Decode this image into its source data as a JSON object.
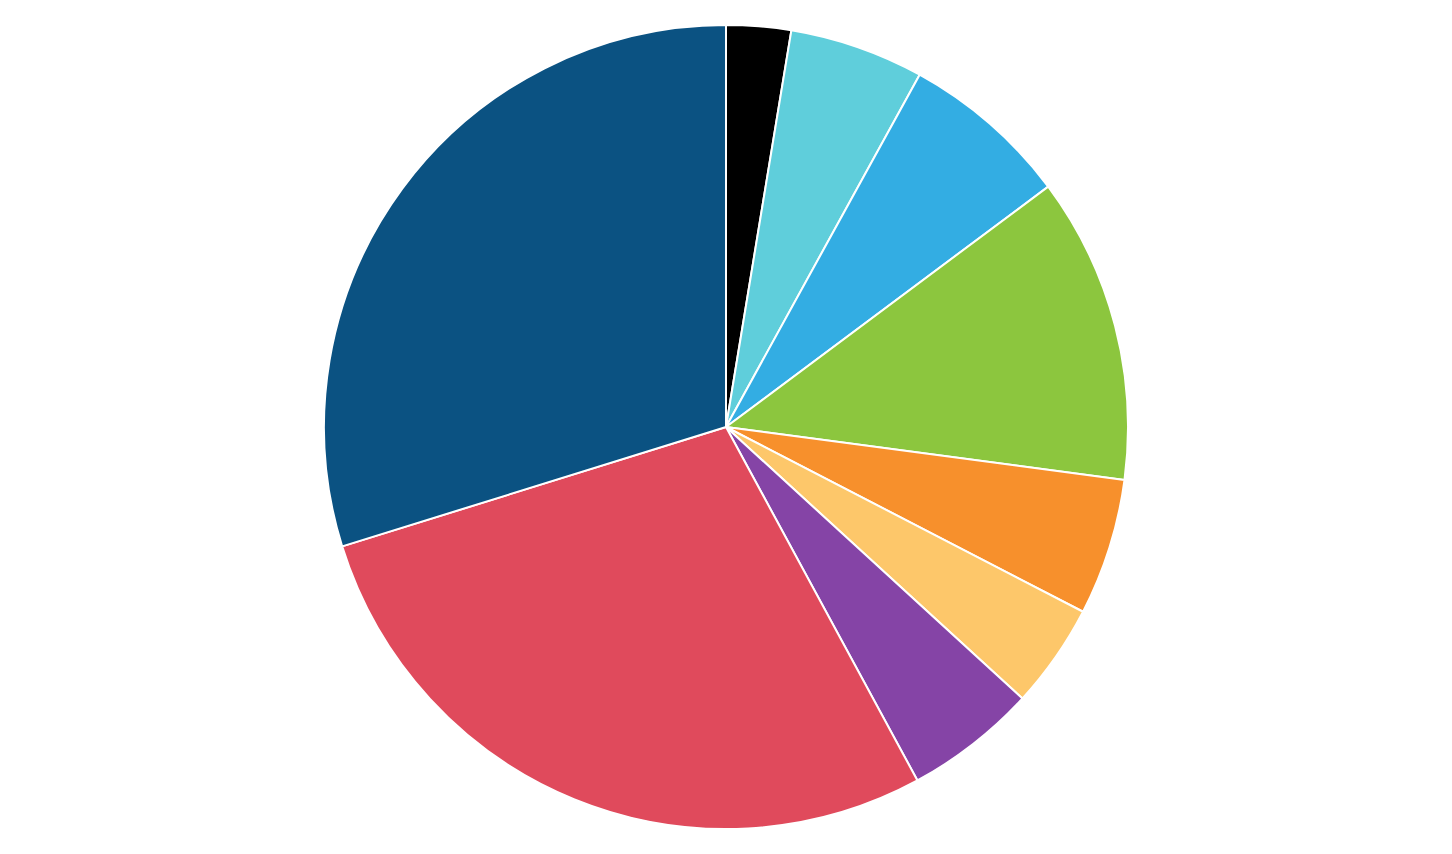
{
  "chart_data": {
    "type": "pie",
    "categories": [
      null,
      null,
      null,
      null,
      null,
      null,
      null,
      null,
      null
    ],
    "values": [
      2.6,
      5.4,
      6.8,
      12.3,
      5.5,
      4.2,
      5.3,
      28.1,
      29.8
    ],
    "colors": [
      "#000000",
      "#5fcedb",
      "#33ade3",
      "#8cc63e",
      "#f7902c",
      "#fdc76a",
      "#8544a6",
      "#e04a5c",
      "#0b5282"
    ]
  }
}
